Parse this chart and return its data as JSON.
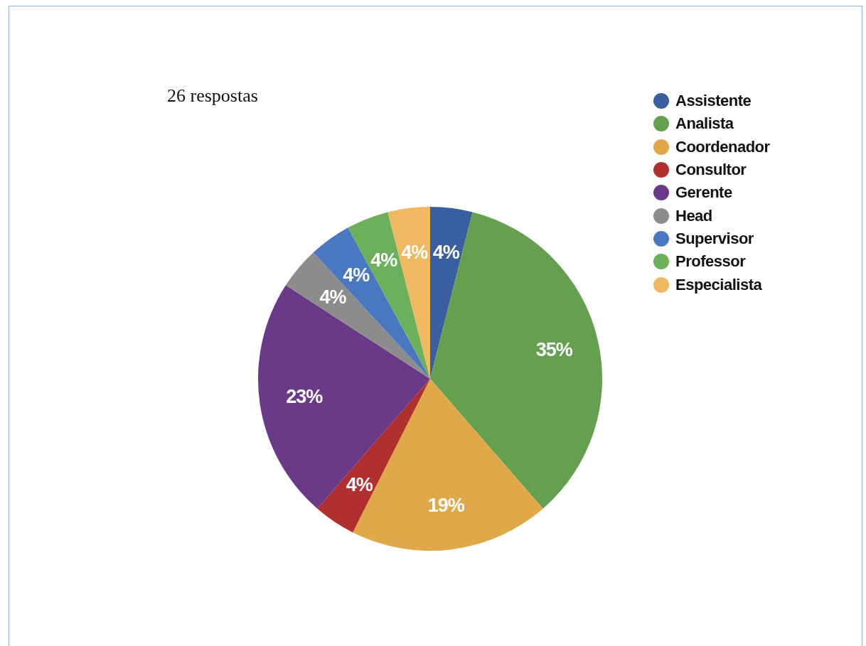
{
  "chart_data": {
    "type": "pie",
    "title": "26 respostas",
    "categories": [
      "Assistente",
      "Analista",
      "Coordenador",
      "Consultor",
      "Gerente",
      "Head",
      "Supervisor",
      "Professor",
      "Especialista"
    ],
    "values": [
      4,
      35,
      19,
      4,
      23,
      4,
      4,
      4,
      4
    ],
    "colors": [
      "#3a5fa0",
      "#64a050",
      "#e0a848",
      "#b03030",
      "#6a3a88",
      "#8c8c8c",
      "#4a78c0",
      "#6cb05c",
      "#f0b860"
    ],
    "value_labels": [
      "4%",
      "35%",
      "19%",
      "4%",
      "23%",
      "4%",
      "4%",
      "4%",
      "4%"
    ],
    "legend": "top right"
  }
}
